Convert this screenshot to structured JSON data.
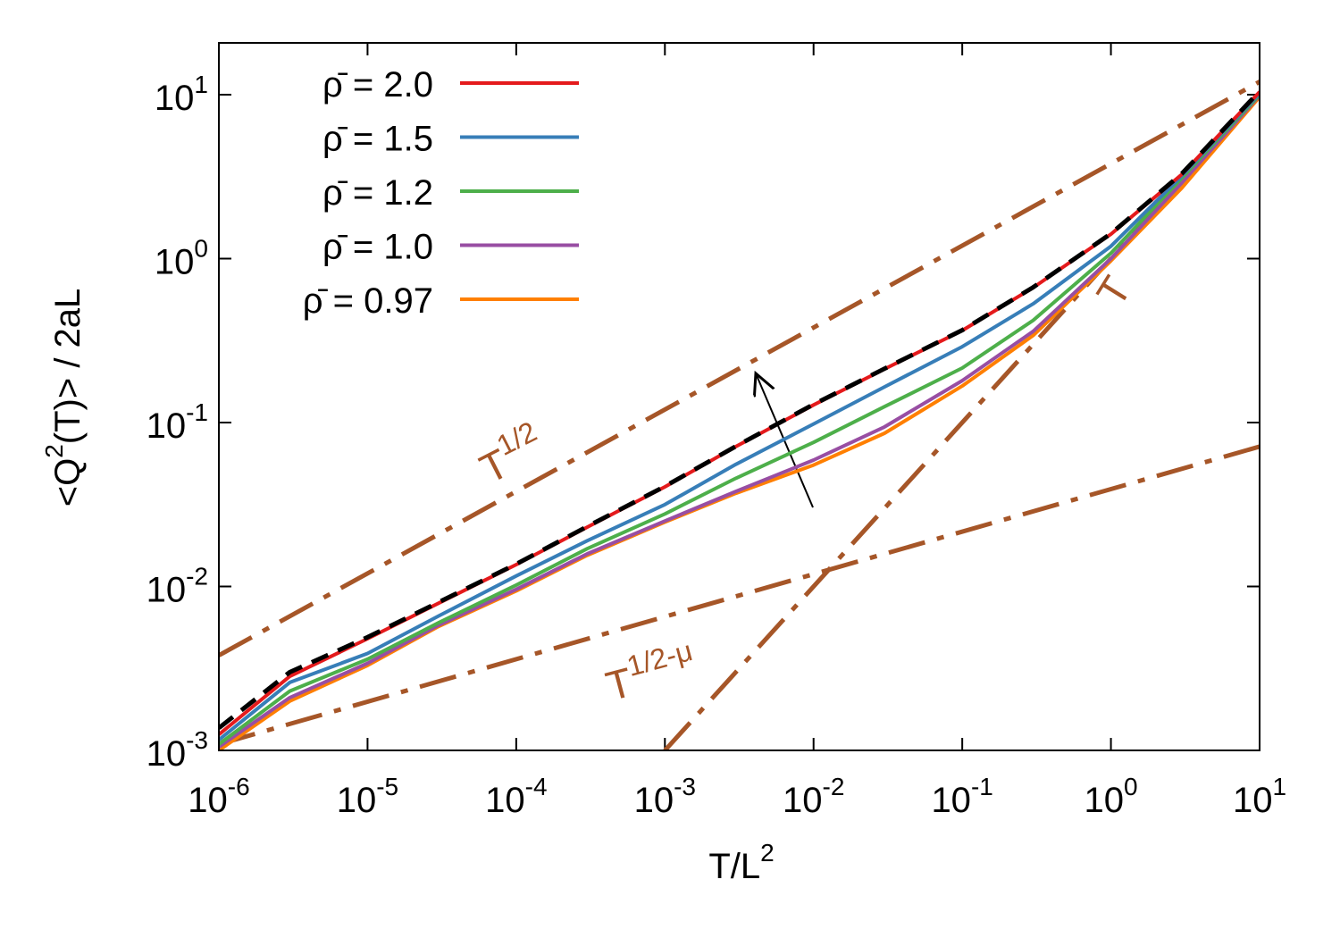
{
  "chart_data": {
    "type": "line",
    "x_label": "T/L^{2}",
    "y_label": "<Q^{2}(T)> / 2aL",
    "log_x": true,
    "log_y": true,
    "xlim": [
      1e-06,
      10
    ],
    "ylim": [
      0.001,
      20.7
    ],
    "xticks": [
      {
        "value": 1e-06,
        "label": "10^{-6}"
      },
      {
        "value": 1e-05,
        "label": "10^{-5}"
      },
      {
        "value": 0.0001,
        "label": "10^{-4}"
      },
      {
        "value": 0.001,
        "label": "10^{-3}"
      },
      {
        "value": 0.01,
        "label": "10^{-2}"
      },
      {
        "value": 0.1,
        "label": "10^{-1}"
      },
      {
        "value": 1,
        "label": "10^{0}"
      },
      {
        "value": 10,
        "label": "10^{1}"
      }
    ],
    "yticks": [
      {
        "value": 0.001,
        "label": "10^{-3}"
      },
      {
        "value": 0.01,
        "label": "10^{-2}"
      },
      {
        "value": 0.1,
        "label": "10^{-1}"
      },
      {
        "value": 1,
        "label": "10^{0}"
      },
      {
        "value": 10,
        "label": "10^{1}"
      }
    ],
    "legend": "top-left",
    "x": [
      1e-06,
      3e-06,
      1e-05,
      3e-05,
      0.0001,
      0.0003,
      0.001,
      0.003,
      0.01,
      0.03,
      0.1,
      0.3,
      1,
      3,
      10
    ],
    "series": [
      {
        "name": "ρ̄ = 2.0",
        "color": "#e41a1c",
        "values": [
          0.00125,
          0.00283,
          0.0048,
          0.0079,
          0.0136,
          0.023,
          0.0405,
          0.0713,
          0.128,
          0.212,
          0.364,
          0.665,
          1.41,
          3.27,
          10.4
        ]
      },
      {
        "name": "ρ̄ = 1.5",
        "color": "#377eb8",
        "values": [
          0.00116,
          0.0026,
          0.0039,
          0.0066,
          0.0116,
          0.019,
          0.0316,
          0.0556,
          0.098,
          0.165,
          0.29,
          0.53,
          1.19,
          3.2,
          10.2
        ]
      },
      {
        "name": "ρ̄ = 1.2",
        "color": "#4daf4a",
        "values": [
          0.00109,
          0.0023,
          0.0036,
          0.006,
          0.0102,
          0.017,
          0.0277,
          0.0457,
          0.0757,
          0.125,
          0.215,
          0.42,
          1.08,
          3.1,
          10
        ]
      },
      {
        "name": "ρ̄ = 1.0",
        "color": "#984ea3",
        "values": [
          0.00105,
          0.0021,
          0.0034,
          0.0058,
          0.0096,
          0.0158,
          0.0251,
          0.038,
          0.059,
          0.094,
          0.18,
          0.36,
          1.0,
          2.9,
          9.9
        ]
      },
      {
        "name": "ρ̄ = 0.97",
        "color": "#ff7f00",
        "values": [
          0.001,
          0.002,
          0.0033,
          0.0057,
          0.0094,
          0.0155,
          0.0247,
          0.037,
          0.055,
          0.086,
          0.167,
          0.34,
          0.97,
          2.7,
          9.7
        ]
      }
    ],
    "reference": {
      "color": "#000000",
      "values": [
        0.00137,
        0.003,
        0.0049,
        0.008,
        0.0137,
        0.0232,
        0.0408,
        0.0716,
        0.129,
        0.213,
        0.366,
        0.668,
        1.42,
        3.3,
        10.5
      ]
    },
    "guides": [
      {
        "label": "T^{1/2}",
        "color": "#a65628",
        "x": [
          1e-06,
          10
        ],
        "values": [
          0.0038,
          12.0
        ]
      },
      {
        "label": "T^{1/2-μ}",
        "color": "#a65628",
        "x": [
          1e-06,
          10
        ],
        "values": [
          0.00109,
          0.0713
        ]
      },
      {
        "label": "T",
        "color": "#a65628",
        "x": [
          0.001,
          3
        ],
        "values": [
          0.001,
          3
        ]
      }
    ]
  }
}
